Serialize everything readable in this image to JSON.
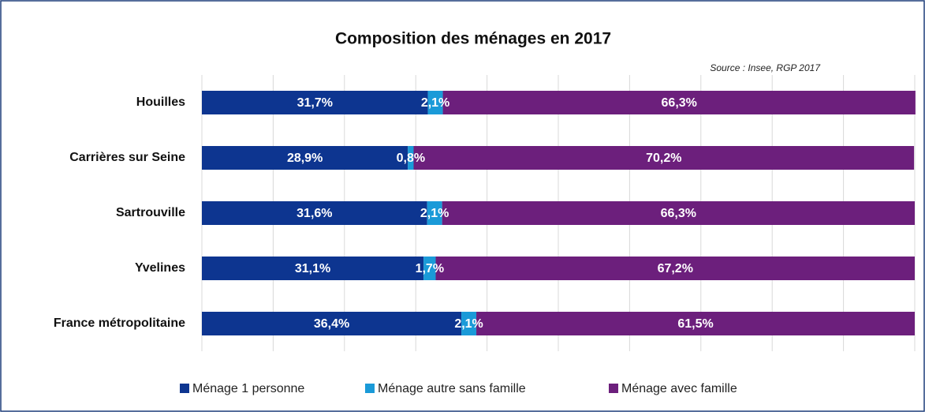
{
  "chart_data": {
    "type": "stacked_barh",
    "title": "Composition des ménages en 2017",
    "subtitle": "Source : Insee, RGP 2017",
    "categories": [
      "Houilles",
      "Carrières sur Seine",
      "Sartrouville",
      "Yvelines",
      "France métropolitaine"
    ],
    "series": [
      {
        "name": "Ménage 1 personne",
        "color": "#0d3590",
        "values": [
          31.7,
          28.9,
          31.6,
          31.1,
          36.4
        ],
        "value_labels": [
          "31,7%",
          "28,9%",
          "31,6%",
          "31,1%",
          "36,4%"
        ]
      },
      {
        "name": "Ménage autre sans famille",
        "color": "#1a9ad8",
        "values": [
          2.1,
          0.8,
          2.1,
          1.7,
          2.1
        ],
        "value_labels": [
          "2,1%",
          "0,8%",
          "2,1%",
          "1,7%",
          "2,1%"
        ]
      },
      {
        "name": "Ménage avec famille",
        "color": "#6c1f7c",
        "values": [
          66.3,
          70.2,
          66.3,
          67.2,
          61.5
        ],
        "value_labels": [
          "66,3%",
          "70,2%",
          "66,3%",
          "67,2%",
          "61,5%"
        ]
      }
    ],
    "xlim": [
      0,
      100
    ],
    "xticks": [
      0,
      10,
      20,
      30,
      40,
      50,
      60,
      70,
      80,
      90,
      100
    ],
    "grid": true,
    "legend": "bottom"
  }
}
